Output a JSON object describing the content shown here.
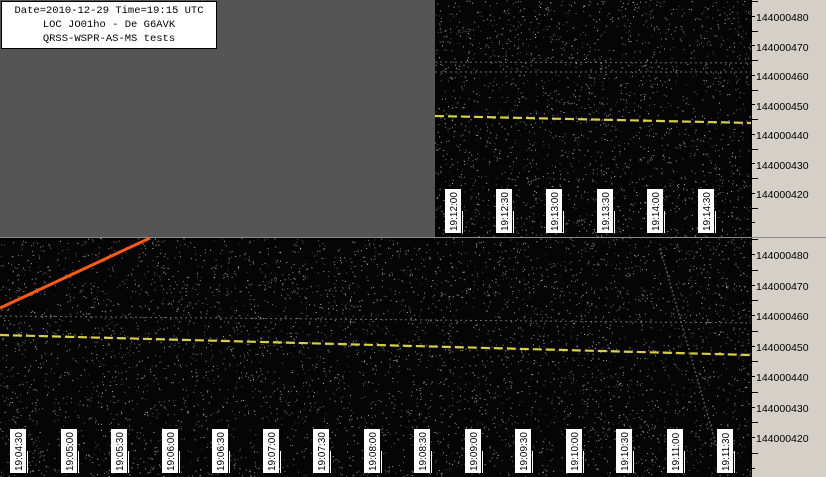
{
  "info": {
    "line1": "Date=2010-12-29 Time=19:15 UTC",
    "line2": "LOC JO01ho - De G6AVK",
    "line3": "QRSS-WSPR-AS-MS  tests"
  },
  "top_panel": {
    "time_labels": [
      "19:12:00",
      "19:12:30",
      "19:13:00",
      "19:13:30",
      "19:14:00",
      "19:14:30"
    ]
  },
  "bottom_panel": {
    "time_labels": [
      "19:04:30",
      "19:05:00",
      "19:05:30",
      "19:06:00",
      "19:06:30",
      "19:07:00",
      "19:07:30",
      "19:08:00",
      "19:08:30",
      "19:09:00",
      "19:09:30",
      "19:10:00",
      "19:10:30",
      "19:11:00",
      "19:11:30"
    ]
  },
  "freq_scale_top": [
    "144000480",
    "144000470",
    "144000460",
    "144000450",
    "144000440",
    "144000430",
    "144000420"
  ],
  "freq_scale_bottom": [
    "144000480",
    "144000470",
    "144000460",
    "144000450",
    "144000440",
    "144000430",
    "144000420"
  ],
  "colors": {
    "signal_trace": "#d8d040",
    "meteor_trace": "#ff5a10",
    "background": "#050505"
  }
}
